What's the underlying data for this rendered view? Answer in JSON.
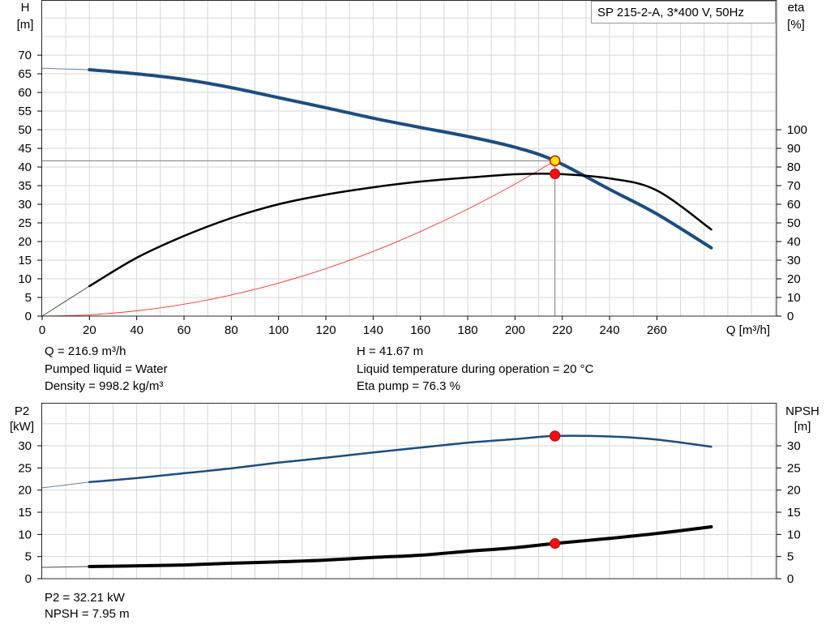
{
  "chart_data": [
    {
      "type": "line",
      "title": "SP 215-2-A, 3*400 V, 50Hz",
      "xlabel": "Q [m³/h]",
      "ylabel": "H",
      "yunit": "[m]",
      "y2label": "eta",
      "y2unit": "[%]",
      "xlim": [
        0,
        310.6
      ],
      "ylim": [
        0,
        84.8
      ],
      "y2lim": [
        0,
        169.6
      ],
      "xticks": [
        0,
        20,
        40,
        60,
        80,
        100,
        120,
        140,
        160,
        180,
        200,
        220,
        240,
        260
      ],
      "yticks": [
        0,
        5,
        10,
        15,
        20,
        25,
        30,
        35,
        40,
        45,
        50,
        55,
        60,
        65,
        70
      ],
      "y2ticks": [
        0,
        10,
        20,
        30,
        40,
        50,
        60,
        70,
        80,
        90,
        100
      ],
      "grid": true,
      "grid_step_x": 10,
      "grid_step_y": 5,
      "crosshair": true,
      "y_series": [
        {
          "color": "#1c4d80",
          "thin_below_x": 20,
          "x": [
            0,
            20,
            40,
            60,
            80,
            100,
            120,
            140,
            160,
            180,
            200,
            216.9,
            240,
            260,
            283
          ],
          "y": [
            66.5,
            66.1,
            65.0,
            63.5,
            61.3,
            58.6,
            55.9,
            53.1,
            50.6,
            48.2,
            45.3,
            41.67,
            34.0,
            27.4,
            18.3
          ]
        },
        {
          "color": "#ff3030",
          "x": [
            0,
            20,
            40,
            60,
            80,
            100,
            120,
            140,
            160,
            180,
            200,
            216.9
          ],
          "y": [
            0,
            0.35,
            1.42,
            3.19,
            5.67,
            8.86,
            12.75,
            17.36,
            22.67,
            28.7,
            35.43,
            41.67
          ]
        }
      ],
      "y2_series": [
        {
          "color": "#000000",
          "thin_below_x": 20,
          "x": [
            0,
            20,
            40,
            60,
            80,
            100,
            120,
            140,
            160,
            180,
            200,
            216.9,
            240,
            260,
            283
          ],
          "y": [
            0,
            16.1,
            31.3,
            43.0,
            52.6,
            60.0,
            65.2,
            69.1,
            72.2,
            74.3,
            76.1,
            76.3,
            73.9,
            67.4,
            46.5
          ]
        }
      ],
      "operating_point": {
        "x": 216.9,
        "y": 41.67,
        "y2": 76.3,
        "y_marker_color": "#ffe600",
        "y2_marker_color": "#ee1111"
      }
    },
    {
      "type": "line",
      "ylabel": "P2",
      "yunit": "[kW]",
      "y2label": "NPSH",
      "y2unit": "[m]",
      "xlim": [
        0,
        310.6
      ],
      "ylim": [
        0,
        39.7
      ],
      "y2lim": [
        0,
        39.7
      ],
      "xticks": [],
      "yticks": [
        0,
        5,
        10,
        15,
        20,
        25,
        30
      ],
      "y2ticks": [
        0,
        5,
        10,
        15,
        20,
        25,
        30
      ],
      "grid": true,
      "grid_step_x": 10,
      "grid_step_y": 5,
      "crosshair": false,
      "y_series": [
        {
          "color": "#1c4d80",
          "thin_below_x": 20,
          "x": [
            0,
            20,
            40,
            60,
            80,
            100,
            120,
            140,
            160,
            180,
            200,
            216.9,
            240,
            260,
            283
          ],
          "y": [
            20.5,
            21.8,
            22.7,
            23.8,
            24.9,
            26.2,
            27.3,
            28.5,
            29.6,
            30.7,
            31.5,
            32.21,
            32.1,
            31.4,
            29.8
          ]
        }
      ],
      "y2_series": [
        {
          "color": "#000000",
          "thin_below_x": 20,
          "x": [
            0,
            20,
            40,
            60,
            80,
            100,
            120,
            140,
            160,
            180,
            200,
            216.9,
            240,
            260,
            283
          ],
          "y": [
            2.56,
            2.74,
            2.9,
            3.1,
            3.5,
            3.8,
            4.2,
            4.8,
            5.3,
            6.2,
            7.0,
            7.95,
            9.1,
            10.2,
            11.7
          ]
        }
      ],
      "operating_point": {
        "x": 216.9,
        "y": 32.21,
        "y2": 7.95,
        "y_marker_color": "#ee1111",
        "y2_marker_color": "#ee1111"
      }
    }
  ],
  "readouts": {
    "flow": "Q = 216.9 m³/h",
    "head": "H = 41.67 m",
    "liquid": "Pumped liquid = Water",
    "temperature": "Liquid temperature during operation = 20 °C",
    "density": "Density = 998.2 kg/m³",
    "efficiency": "Eta pump = 76.3 %",
    "power": "P2 = 32.21 kW",
    "npsh": "NPSH = 7.95 m"
  }
}
